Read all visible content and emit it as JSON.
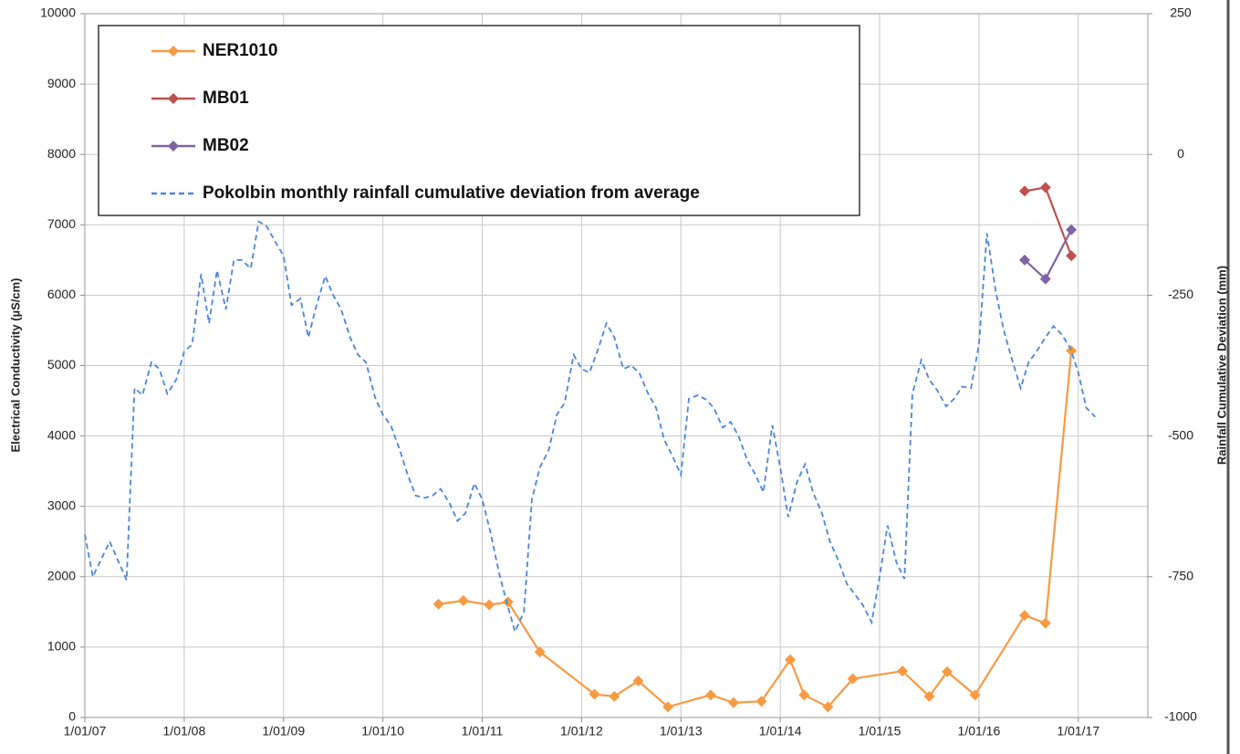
{
  "chart_data": {
    "type": "line",
    "y_label": "Electrical Conductivity (µS/cm)",
    "y2_label": "Rainfall Cumulative Deviation (mm)",
    "xlim": [
      2007,
      2017.7
    ],
    "xticks": [
      {
        "value": 2007,
        "label": "1/01/07"
      },
      {
        "value": 2008,
        "label": "1/01/08"
      },
      {
        "value": 2009,
        "label": "1/01/09"
      },
      {
        "value": 2010,
        "label": "1/01/10"
      },
      {
        "value": 2011,
        "label": "1/01/11"
      },
      {
        "value": 2012,
        "label": "1/01/12"
      },
      {
        "value": 2013,
        "label": "1/01/13"
      },
      {
        "value": 2014,
        "label": "1/01/14"
      },
      {
        "value": 2015,
        "label": "1/01/15"
      },
      {
        "value": 2016,
        "label": "1/01/16"
      },
      {
        "value": 2017,
        "label": "1/01/17"
      }
    ],
    "ylim": [
      0,
      10000
    ],
    "yticks": [
      0,
      1000,
      2000,
      3000,
      4000,
      5000,
      6000,
      7000,
      8000,
      9000,
      10000
    ],
    "y2lim": [
      -1000,
      250
    ],
    "y2ticks": [
      -1000,
      -750,
      -500,
      -250,
      0,
      250
    ],
    "grid": true,
    "legend": "top-left",
    "series": [
      {
        "name": "NER1010",
        "color": "#f79a42",
        "style": "solid",
        "markers": true,
        "x": [
          2010.56,
          2010.81,
          2011.07,
          2011.26,
          2011.58,
          2012.13,
          2012.33,
          2012.57,
          2012.87,
          2013.3,
          2013.53,
          2013.81,
          2014.1,
          2014.24,
          2014.48,
          2014.73,
          2015.23,
          2015.5,
          2015.68,
          2015.96,
          2016.46,
          2016.67,
          2016.93
        ],
        "values": [
          1610,
          1660,
          1600,
          1640,
          930,
          330,
          300,
          520,
          150,
          320,
          210,
          230,
          820,
          320,
          150,
          550,
          660,
          300,
          650,
          320,
          1450,
          1340,
          5210
        ]
      },
      {
        "name": "MB01",
        "color": "#c0504d",
        "style": "solid",
        "markers": true,
        "x": [
          2016.46,
          2016.67,
          2016.93
        ],
        "values": [
          7480,
          7530,
          6560
        ]
      },
      {
        "name": "MB02",
        "color": "#8064a2",
        "style": "solid",
        "markers": true,
        "x": [
          2016.46,
          2016.67,
          2016.93
        ],
        "values": [
          6500,
          6230,
          6930
        ]
      },
      {
        "name": "Pokolbin monthly rainfall cumulative deviation from average",
        "color": "#4a86d8",
        "style": "dashed",
        "markers": false,
        "axis": "y2",
        "x": [
          2007,
          2007.08,
          2007.25,
          2007.42,
          2007.5,
          2007.58,
          2007.67,
          2007.75,
          2007.83,
          2007.92,
          2008,
          2008.08,
          2008.17,
          2008.25,
          2008.33,
          2008.42,
          2008.5,
          2008.58,
          2008.67,
          2008.75,
          2008.83,
          2008.92,
          2009,
          2009.08,
          2009.17,
          2009.25,
          2009.33,
          2009.42,
          2009.5,
          2009.58,
          2009.67,
          2009.75,
          2009.83,
          2009.92,
          2010,
          2010.08,
          2010.17,
          2010.25,
          2010.33,
          2010.42,
          2010.5,
          2010.58,
          2010.67,
          2010.75,
          2010.83,
          2010.92,
          2011,
          2011.08,
          2011.17,
          2011.25,
          2011.33,
          2011.42,
          2011.5,
          2011.58,
          2011.67,
          2011.75,
          2011.83,
          2011.92,
          2012,
          2012.08,
          2012.17,
          2012.25,
          2012.33,
          2012.42,
          2012.5,
          2012.58,
          2012.67,
          2012.75,
          2012.83,
          2012.92,
          2013,
          2013.08,
          2013.17,
          2013.25,
          2013.33,
          2013.42,
          2013.5,
          2013.58,
          2013.67,
          2013.75,
          2013.83,
          2013.92,
          2014,
          2014.08,
          2014.17,
          2014.25,
          2014.33,
          2014.42,
          2014.5,
          2014.58,
          2014.67,
          2014.75,
          2014.83,
          2014.92,
          2015,
          2015.08,
          2015.17,
          2015.25,
          2015.33,
          2015.42,
          2015.5,
          2015.58,
          2015.67,
          2015.75,
          2015.83,
          2015.92,
          2016,
          2016.08,
          2016.17,
          2016.25,
          2016.33,
          2016.42,
          2016.5,
          2016.58,
          2016.67,
          2016.75,
          2016.83,
          2016.92,
          2017,
          2017.08,
          2017.17
        ],
        "values": [
          -675,
          -750,
          -687.5,
          -756,
          -415,
          -427.5,
          -369,
          -381,
          -425,
          -400,
          -350,
          -337.5,
          -212.5,
          -300,
          -206,
          -275,
          -187.5,
          -187.5,
          -202.5,
          -119,
          -127.5,
          -156,
          -180,
          -267.5,
          -256,
          -325,
          -269,
          -216,
          -250,
          -275,
          -325,
          -356,
          -369,
          -431,
          -462.5,
          -481,
          -525,
          -569,
          -606,
          -610,
          -606,
          -594,
          -619,
          -651,
          -637.5,
          -584,
          -612.5,
          -669,
          -744,
          -797.5,
          -847.5,
          -812.5,
          -612.5,
          -556,
          -525,
          -462.5,
          -441,
          -356,
          -381,
          -387.5,
          -344,
          -300,
          -325,
          -381,
          -375,
          -387.5,
          -425,
          -450,
          -506,
          -537.5,
          -569,
          -434,
          -427.5,
          -435,
          -450,
          -485,
          -475,
          -500,
          -544,
          -569,
          -600,
          -481,
          -556,
          -644,
          -581,
          -550,
          -600,
          -637.5,
          -687.5,
          -719,
          -762.5,
          -781,
          -800,
          -831,
          -750,
          -659,
          -725,
          -754,
          -425,
          -365,
          -400,
          -419,
          -447.5,
          -434,
          -412.5,
          -415,
          -337.5,
          -140,
          -244,
          -312.5,
          -362.5,
          -415,
          -369,
          -350,
          -325,
          -305,
          -319,
          -344,
          -387.5,
          -450,
          -466
        ]
      }
    ]
  }
}
